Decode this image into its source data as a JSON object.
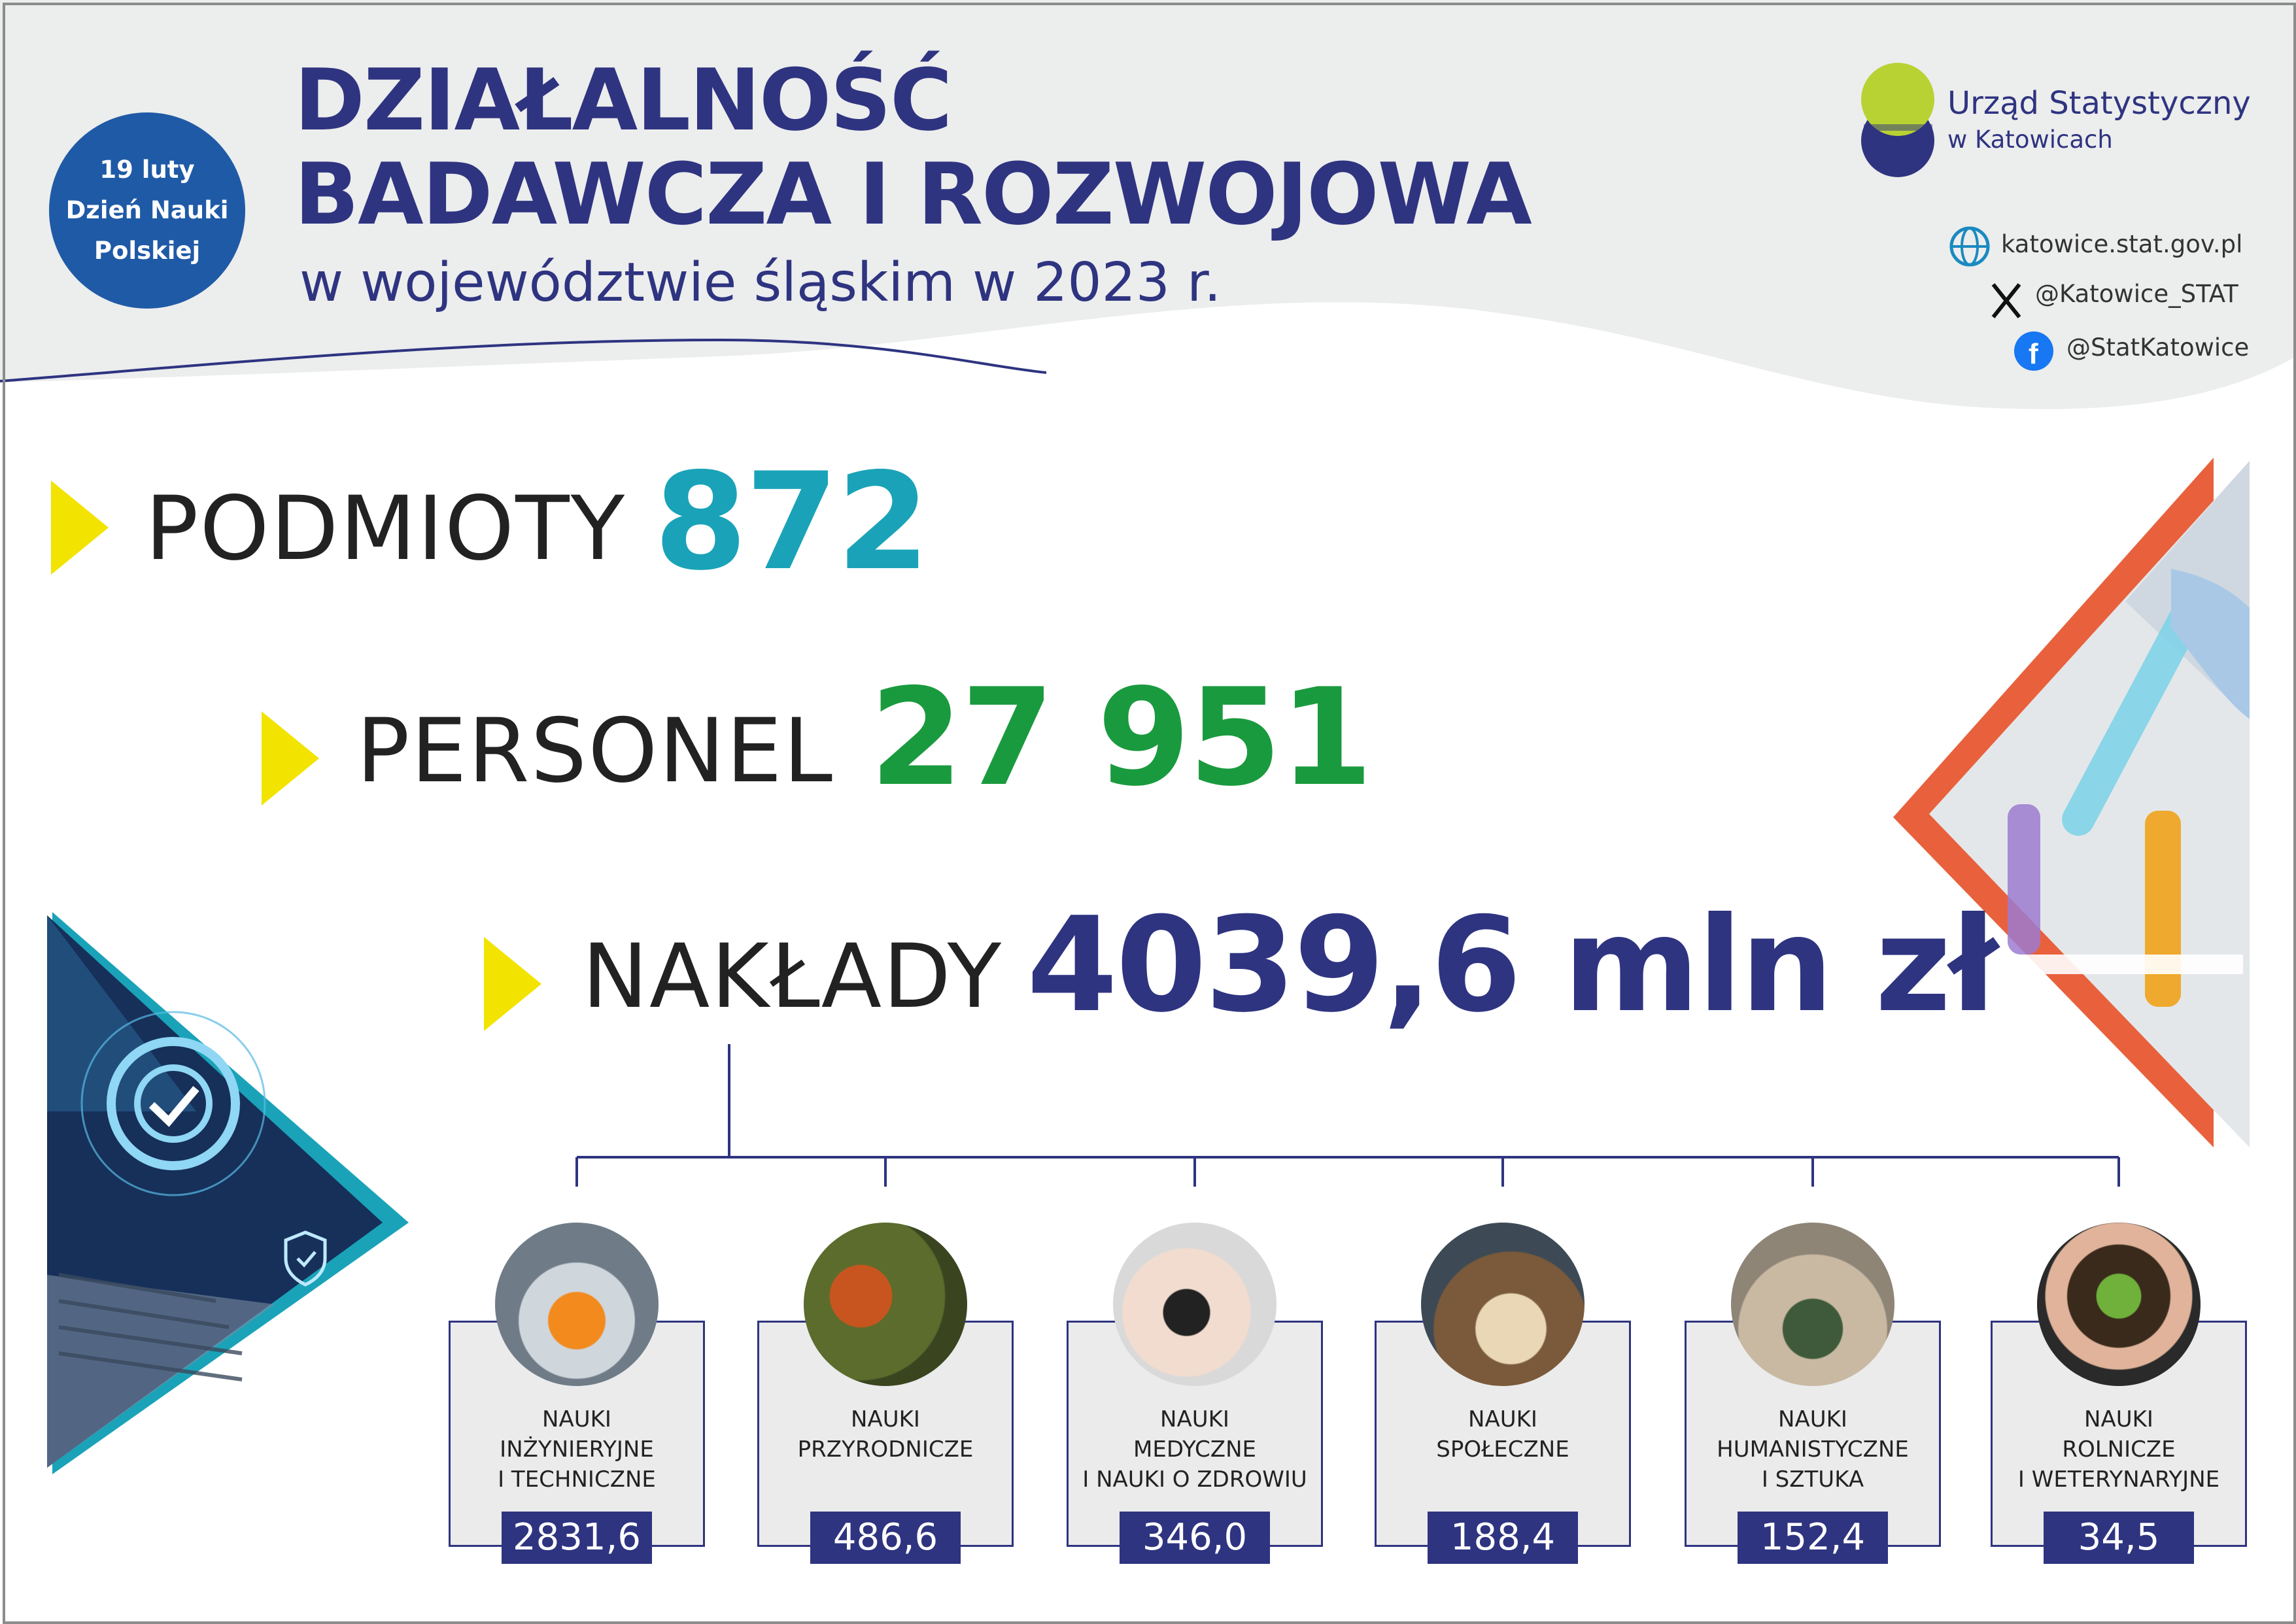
{
  "header": {
    "badge_lines": [
      "19 luty",
      "Dzień Nauki",
      "Polskiej"
    ],
    "title_line1": "DZIAŁALNOŚĆ",
    "title_line2": "BADAWCZA I ROZWOJOWA",
    "subtitle": "w województwie śląskim w 2023 r."
  },
  "logo": {
    "name_line1": "Urząd Statystyczny",
    "name_line2": "w Katowicach"
  },
  "contacts": {
    "website": "katowice.stat.gov.pl",
    "x_handle": "@Katowice_STAT",
    "facebook": "@StatKatowice"
  },
  "metrics": [
    {
      "label": "PODMIOTY",
      "value": "872",
      "color": "#1aa3b8"
    },
    {
      "label": "PERSONEL",
      "value": "27 951",
      "color": "#1a9a3e"
    },
    {
      "label": "NAKŁADY",
      "value": "4039,6 mln zł",
      "color": "#2e3480"
    }
  ],
  "colors": {
    "navy": "#2e3480",
    "yellow": "#f2e300",
    "teal": "#1aa3b8",
    "green": "#1a9a3e",
    "orange": "#e8613c",
    "grey_band": "#eceded"
  },
  "categories": [
    {
      "lines": [
        "NAUKI",
        "INŻYNIERYJNE",
        "I TECHNICZNE"
      ],
      "value": "2831,6",
      "icon": "robot-arms-photo-icon"
    },
    {
      "lines": [
        "NAUKI",
        "PRZYRODNICZE"
      ],
      "value": "486,6",
      "icon": "squirrel-photo-icon"
    },
    {
      "lines": [
        "NAUKI",
        "MEDYCZNE",
        "I NAUKI O ZDROWIU"
      ],
      "value": "346,0",
      "icon": "blood-pressure-photo-icon"
    },
    {
      "lines": [
        "NAUKI",
        "SPOŁECZNE"
      ],
      "value": "188,4",
      "icon": "books-photo-icon"
    },
    {
      "lines": [
        "NAUKI",
        "HUMANISTYCZNE",
        "I SZTUKA"
      ],
      "value": "152,4",
      "icon": "gallery-photo-icon"
    },
    {
      "lines": [
        "NAUKI",
        "ROLNICZE",
        "I WETERYNARYJNE"
      ],
      "value": "34,5",
      "icon": "seedling-photo-icon"
    }
  ]
}
